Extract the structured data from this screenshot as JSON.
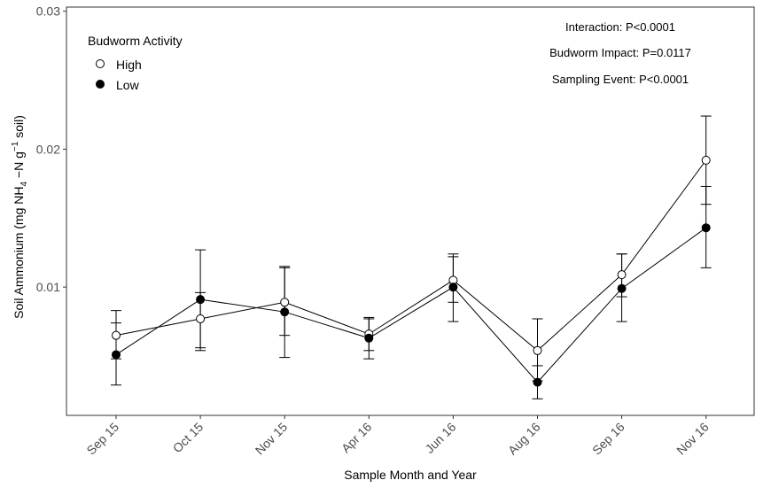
{
  "chart_data": {
    "type": "line",
    "xlabel": "Sample Month and Year",
    "ylabel": {
      "prefix": "Soil Ammonium (mg NH",
      "sub4": "4",
      "mid": " −N g",
      "sup": "−1",
      "suffix": " soil)"
    },
    "ylim": [
      0.0007,
      0.0303
    ],
    "yticks": [
      0.01,
      0.02,
      0.03
    ],
    "ytick_labels": [
      "0.01",
      "0.02",
      "0.03"
    ],
    "categories": [
      "Sep 15",
      "Oct 15",
      "Nov 15",
      "Apr 16",
      "Jun 16",
      "Aug 16",
      "Sep 16",
      "Nov 16"
    ],
    "legend": {
      "title": "Budworm Activity",
      "position": "top-left"
    },
    "series": [
      {
        "name": "High",
        "marker": "open-circle",
        "values": [
          0.0065,
          0.0077,
          0.0089,
          0.0066,
          0.0105,
          0.0054,
          0.0109,
          0.0192
        ],
        "err_low": [
          0.0048,
          0.0054,
          0.0065,
          0.0054,
          0.0089,
          0.0032,
          0.0093,
          0.016
        ],
        "err_high": [
          0.0083,
          0.0096,
          0.0115,
          0.0078,
          0.0122,
          0.0077,
          0.0124,
          0.0224
        ]
      },
      {
        "name": "Low",
        "marker": "filled-circle",
        "values": [
          0.0051,
          0.0091,
          0.0082,
          0.0063,
          0.01,
          0.0031,
          0.0099,
          0.0143
        ],
        "err_low": [
          0.0029,
          0.0056,
          0.0049,
          0.0048,
          0.0075,
          0.0019,
          0.0075,
          0.0114
        ],
        "err_high": [
          0.0074,
          0.0127,
          0.0114,
          0.0077,
          0.0124,
          0.0043,
          0.0124,
          0.0173
        ]
      }
    ],
    "annotations": [
      "Interaction: P<0.0001",
      "Budworm Impact: P=0.0117",
      "Sampling Event: P<0.0001"
    ],
    "grid": false
  }
}
